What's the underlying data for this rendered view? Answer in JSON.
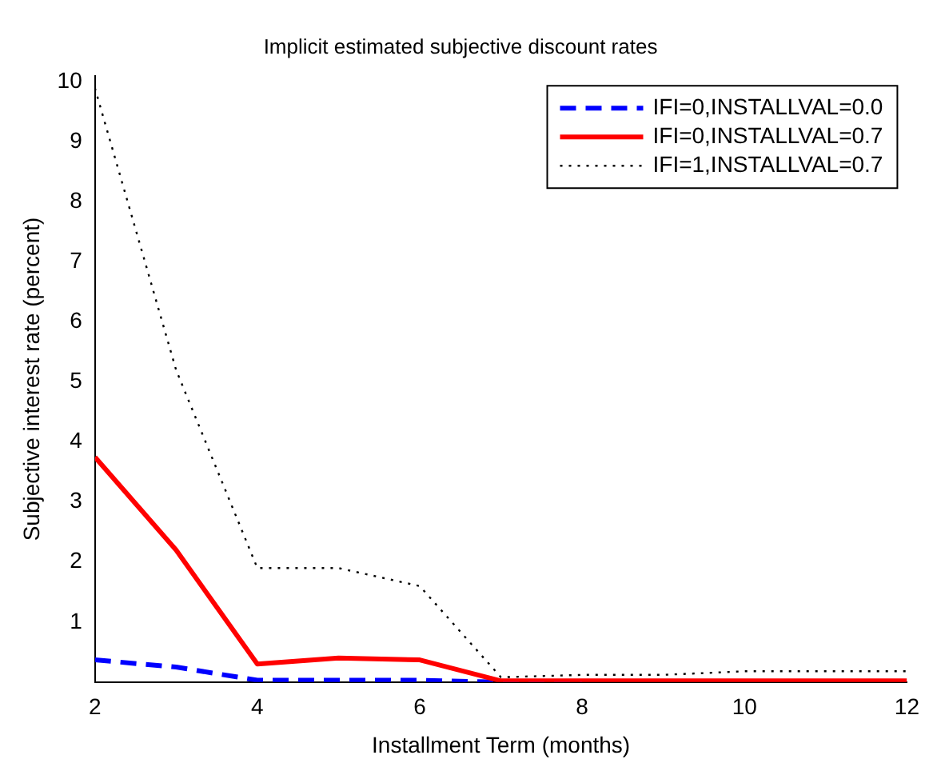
{
  "chart_data": {
    "type": "line",
    "title": "Implicit estimated subjective discount rates",
    "xlabel": "Installment Term (months)",
    "ylabel": "Subjective interest rate (percent)",
    "x": [
      2,
      3,
      4,
      5,
      6,
      7,
      8,
      9,
      10,
      11,
      12
    ],
    "series": [
      {
        "name": "IFI=0,INSTALLVAL=0.0",
        "color": "#0000ff",
        "line_style": "dashed",
        "values": [
          0.37,
          0.25,
          0.03,
          0.03,
          0.03,
          0.0,
          0.0,
          null,
          null,
          null,
          null
        ]
      },
      {
        "name": "IFI=0,INSTALLVAL=0.7",
        "color": "#ff0000",
        "line_style": "solid",
        "values": [
          3.75,
          2.2,
          0.3,
          0.4,
          0.37,
          0.02,
          0.02,
          0.02,
          0.02,
          0.02,
          0.02
        ]
      },
      {
        "name": "IFI=1,INSTALLVAL=0.7",
        "color": "#000000",
        "line_style": "dotted",
        "values": [
          9.9,
          5.2,
          1.9,
          1.9,
          1.6,
          0.08,
          0.12,
          0.12,
          0.18,
          0.18,
          0.18
        ]
      }
    ],
    "xlim": [
      2,
      12
    ],
    "xticks": [
      2,
      4,
      6,
      8,
      10,
      12
    ],
    "ylim": [
      0,
      10.1
    ],
    "yticks": [
      1,
      2,
      3,
      4,
      5,
      6,
      7,
      8,
      9,
      10
    ],
    "grid": false,
    "legend": "top right",
    "marker": "none"
  }
}
